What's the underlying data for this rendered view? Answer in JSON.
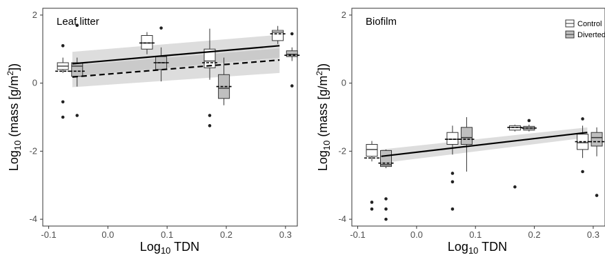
{
  "chart_data": [
    {
      "type": "box",
      "panel_label": "Leaf litter",
      "xlabel": "Log10 TDN",
      "ylabel": "Log10 (mass [g/m2])",
      "xlim": [
        -0.11,
        0.32
      ],
      "ylim": [
        -4.2,
        2.2
      ],
      "x_ticks": [
        -0.1,
        0.0,
        0.1,
        0.2,
        0.3
      ],
      "x_tick_labels": [
        "-0.1",
        "0.0",
        "0.1",
        "0.2",
        "0.3"
      ],
      "y_ticks": [
        -4,
        -2,
        0,
        2
      ],
      "y_tick_labels": [
        "-4",
        "-2",
        "0",
        "2"
      ],
      "legend": null,
      "series": [
        {
          "group": "Control",
          "fill": "#ffffff",
          "boxes": [
            {
              "x": -0.076,
              "q1": 0.4,
              "median": 0.5,
              "q3": 0.6,
              "lower": 0.3,
              "upper": 0.75,
              "mean": 0.35,
              "outliers": [
                1.1,
                -0.55,
                -1.0
              ]
            },
            {
              "x": 0.066,
              "q1": 1.0,
              "median": 1.18,
              "q3": 1.4,
              "lower": 0.85,
              "upper": 1.5,
              "mean": 1.18,
              "outliers": []
            },
            {
              "x": 0.172,
              "q1": 0.45,
              "median": 0.65,
              "q3": 1.0,
              "lower": 0.1,
              "upper": 1.6,
              "mean": 0.6,
              "outliers": [
                -0.95,
                -1.25
              ]
            },
            {
              "x": 0.287,
              "q1": 1.25,
              "median": 1.5,
              "q3": 1.55,
              "lower": 1.15,
              "upper": 1.68,
              "mean": 1.45,
              "outliers": []
            }
          ]
        },
        {
          "group": "Diverted",
          "fill": "#bfbfbf",
          "boxes": [
            {
              "x": -0.052,
              "q1": 0.2,
              "median": 0.5,
              "q3": 0.6,
              "lower": -0.1,
              "upper": 0.75,
              "mean": 0.35,
              "outliers": [
                1.7,
                -0.95
              ]
            },
            {
              "x": 0.09,
              "q1": 0.4,
              "median": 0.6,
              "q3": 0.78,
              "lower": 0.05,
              "upper": 1.05,
              "mean": 0.6,
              "outliers": [
                1.62
              ]
            },
            {
              "x": 0.196,
              "q1": -0.45,
              "median": -0.15,
              "q3": 0.25,
              "lower": -0.65,
              "upper": 0.75,
              "mean": -0.1,
              "outliers": []
            },
            {
              "x": 0.311,
              "q1": 0.78,
              "median": 0.85,
              "q3": 0.95,
              "lower": 0.65,
              "upper": 1.05,
              "mean": 0.82,
              "outliers": [
                1.45,
                -0.08
              ]
            }
          ]
        }
      ],
      "fit_lines": [
        {
          "group": "Control",
          "style": "solid",
          "x": [
            -0.06,
            0.29
          ],
          "y": [
            0.57,
            1.1
          ],
          "ci_lower": [
            0.2,
            0.75
          ],
          "ci_upper": [
            0.92,
            1.42
          ]
        },
        {
          "group": "Diverted",
          "style": "dashed",
          "x": [
            -0.06,
            0.29
          ],
          "y": [
            0.18,
            0.68
          ],
          "ci_lower": [
            -0.12,
            0.3
          ],
          "ci_upper": [
            0.52,
            1.02
          ]
        }
      ]
    },
    {
      "type": "box",
      "panel_label": "Biofilm",
      "xlabel": "Log10 TDN",
      "ylabel": "Log10 (mass [g/m2])",
      "xlim": [
        -0.11,
        0.32
      ],
      "ylim": [
        -4.2,
        2.2
      ],
      "x_ticks": [
        -0.1,
        0.0,
        0.1,
        0.2,
        0.3
      ],
      "x_tick_labels": [
        "-0.1",
        "0.0",
        "0.1",
        "0.2",
        "0.3"
      ],
      "y_ticks": [
        -4,
        -2,
        0,
        2
      ],
      "y_tick_labels": [
        "-4",
        "-2",
        "0",
        "2"
      ],
      "legend": {
        "position": "top-right",
        "entries": [
          {
            "label": "Control",
            "fill": "#ffffff"
          },
          {
            "label": "Diverted",
            "fill": "#bfbfbf"
          }
        ]
      },
      "series": [
        {
          "group": "Control",
          "fill": "#ffffff",
          "boxes": [
            {
              "x": -0.076,
              "q1": -2.15,
              "median": -1.95,
              "q3": -1.8,
              "lower": -2.3,
              "upper": -1.7,
              "mean": -2.2,
              "outliers": [
                -3.5,
                -3.7
              ]
            },
            {
              "x": 0.061,
              "q1": -1.8,
              "median": -1.65,
              "q3": -1.45,
              "lower": -2.1,
              "upper": -1.25,
              "mean": -1.65,
              "outliers": [
                -2.65,
                -2.9,
                -3.7
              ]
            },
            {
              "x": 0.167,
              "q1": -1.38,
              "median": -1.3,
              "q3": -1.25,
              "lower": -1.42,
              "upper": -1.22,
              "mean": -1.3,
              "outliers": [
                -3.05
              ]
            },
            {
              "x": 0.282,
              "q1": -1.95,
              "median": -1.75,
              "q3": -1.5,
              "lower": -2.2,
              "upper": -1.25,
              "mean": -1.72,
              "outliers": [
                -1.05,
                -2.6
              ]
            }
          ]
        },
        {
          "group": "Diverted",
          "fill": "#bfbfbf",
          "boxes": [
            {
              "x": -0.052,
              "q1": -2.45,
              "median": -2.4,
              "q3": -1.98,
              "lower": -2.5,
              "upper": -1.95,
              "mean": -2.35,
              "outliers": [
                -3.4,
                -3.7,
                -4.0
              ]
            },
            {
              "x": 0.085,
              "q1": -1.8,
              "median": -1.6,
              "q3": -1.3,
              "lower": -2.6,
              "upper": -1.0,
              "mean": -1.65,
              "outliers": []
            },
            {
              "x": 0.191,
              "q1": -1.38,
              "median": -1.32,
              "q3": -1.27,
              "lower": -1.42,
              "upper": -1.22,
              "mean": -1.32,
              "outliers": [
                -1.1
              ]
            },
            {
              "x": 0.306,
              "q1": -1.85,
              "median": -1.6,
              "q3": -1.45,
              "lower": -2.15,
              "upper": -1.3,
              "mean": -1.72,
              "outliers": [
                -3.3
              ]
            }
          ]
        }
      ],
      "fit_lines": [
        {
          "group": "Control",
          "style": "solid",
          "x": [
            -0.06,
            0.29
          ],
          "y": [
            -2.15,
            -1.45
          ],
          "ci_lower": [
            -2.35,
            -1.6
          ],
          "ci_upper": [
            -1.95,
            -1.3
          ]
        }
      ]
    }
  ]
}
